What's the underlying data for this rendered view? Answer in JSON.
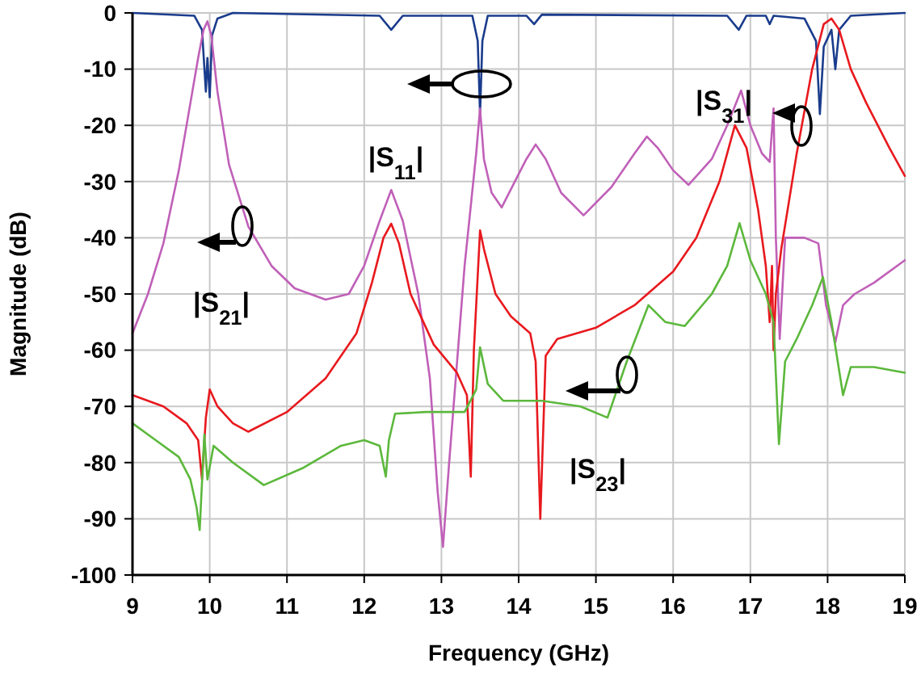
{
  "chart_data": {
    "type": "line",
    "xlabel": "Frequency (GHz)",
    "ylabel": "Magnitude (dB)",
    "xlim": [
      9,
      19
    ],
    "xticks": [
      9,
      10,
      11,
      12,
      13,
      14,
      15,
      16,
      17,
      18,
      19
    ],
    "ylim": [
      -100,
      0
    ],
    "yticks": [
      -100,
      -90,
      -80,
      -70,
      -60,
      -50,
      -40,
      -30,
      -20,
      -10,
      0
    ],
    "grid": true,
    "marker": "none",
    "line_style": "solid",
    "series": [
      {
        "color": "#1a3c8c",
        "x": [
          9,
          9.8,
          9.9,
          9.95,
          9.97,
          10.0,
          10.03,
          10.1,
          10.3,
          12.2,
          12.35,
          12.5,
          13.4,
          13.47,
          13.5,
          13.53,
          13.6,
          14.1,
          14.2,
          14.3,
          16.7,
          16.85,
          16.95,
          17.2,
          17.25,
          17.3,
          17.7,
          17.85,
          17.9,
          17.95,
          18.05,
          18.1,
          18.15,
          18.3,
          19
        ],
        "values": [
          0,
          -0.5,
          -3,
          -14,
          -8,
          -15,
          -4,
          -1,
          0,
          -0.5,
          -3,
          -0.5,
          -0.5,
          -5,
          -18,
          -5,
          -0.5,
          -0.5,
          -2,
          -0.3,
          -0.5,
          -3,
          -0.5,
          -0.5,
          -2,
          -0.5,
          -1,
          -5,
          -18,
          -6,
          -3,
          -10,
          -3,
          -0.5,
          0
        ]
      },
      {
        "color": "#c060b8",
        "x": [
          9,
          9.2,
          9.4,
          9.6,
          9.75,
          9.85,
          9.92,
          9.97,
          10.02,
          10.1,
          10.25,
          10.5,
          10.8,
          11.1,
          11.5,
          11.8,
          12.0,
          12.2,
          12.35,
          12.5,
          12.7,
          12.85,
          12.95,
          13.02,
          13.1,
          13.3,
          13.45,
          13.5,
          13.55,
          13.65,
          13.78,
          13.95,
          14.1,
          14.22,
          14.35,
          14.55,
          14.84,
          15.2,
          15.5,
          15.66,
          15.8,
          16.0,
          16.2,
          16.5,
          16.7,
          16.88,
          17.0,
          17.15,
          17.25,
          17.3,
          17.33,
          17.38,
          17.45,
          17.7,
          17.88,
          17.98,
          18.1,
          18.2,
          18.35,
          18.6,
          19
        ],
        "values": [
          -57,
          -50,
          -41,
          -28,
          -16,
          -8,
          -3,
          -1.5,
          -4,
          -14,
          -27,
          -38,
          -45,
          -49,
          -51,
          -50,
          -45,
          -37,
          -31.5,
          -37,
          -50,
          -65,
          -85,
          -95,
          -80,
          -45,
          -25,
          -17,
          -26,
          -32,
          -34.6,
          -30,
          -26,
          -23.4,
          -26,
          -32,
          -36,
          -31,
          -25,
          -22,
          -24,
          -28,
          -30.6,
          -26,
          -20,
          -13.8,
          -20,
          -25,
          -26.5,
          -17,
          -40,
          -58,
          -40,
          -40,
          -41,
          -52,
          -58.6,
          -52,
          -50,
          -48,
          -44
        ]
      },
      {
        "color": "#e8191e",
        "x": [
          9,
          9.4,
          9.7,
          9.85,
          9.9,
          9.95,
          10.0,
          10.1,
          10.3,
          10.5,
          11.0,
          11.5,
          11.9,
          12.1,
          12.25,
          12.35,
          12.45,
          12.6,
          12.9,
          13.2,
          13.33,
          13.38,
          13.42,
          13.5,
          13.55,
          13.7,
          13.9,
          14.15,
          14.22,
          14.28,
          14.35,
          14.5,
          15.0,
          15.5,
          16.0,
          16.3,
          16.6,
          16.8,
          16.95,
          17.1,
          17.2,
          17.25,
          17.28,
          17.3,
          17.33,
          17.4,
          17.6,
          17.8,
          17.95,
          18.05,
          18.15,
          18.3,
          18.5,
          18.8,
          19
        ],
        "values": [
          -68,
          -70,
          -73,
          -76,
          -83,
          -72,
          -67,
          -70,
          -73,
          -74.5,
          -71,
          -65,
          -57,
          -48,
          -40,
          -37.5,
          -41,
          -50,
          -59,
          -64,
          -68,
          -82.5,
          -60,
          -38.7,
          -42,
          -50,
          -54,
          -57,
          -62,
          -90,
          -61,
          -58,
          -56,
          -52,
          -46,
          -40,
          -30,
          -20,
          -24,
          -35,
          -45,
          -55,
          -45,
          -60,
          -50,
          -42,
          -25,
          -10,
          -2,
          -1,
          -3,
          -10,
          -16,
          -24,
          -29
        ]
      },
      {
        "color": "#5cb83c",
        "x": [
          9,
          9.3,
          9.6,
          9.75,
          9.83,
          9.87,
          9.93,
          9.97,
          10.05,
          10.3,
          10.7,
          11.2,
          11.7,
          12.0,
          12.2,
          12.28,
          12.32,
          12.4,
          12.8,
          13.3,
          13.45,
          13.5,
          13.6,
          13.8,
          14.3,
          14.8,
          15.15,
          15.4,
          15.68,
          15.9,
          16.15,
          16.5,
          16.7,
          16.86,
          17.0,
          17.2,
          17.3,
          17.37,
          17.45,
          17.6,
          17.8,
          17.94,
          18.05,
          18.2,
          18.3,
          18.6,
          19
        ],
        "values": [
          -73,
          -76,
          -79,
          -83,
          -88,
          -92,
          -75,
          -83,
          -77,
          -80,
          -84,
          -81,
          -77,
          -76,
          -77,
          -82.5,
          -76,
          -71.3,
          -71,
          -71,
          -67,
          -59.5,
          -66,
          -69,
          -69,
          -70,
          -72,
          -62,
          -52,
          -55,
          -55.7,
          -50,
          -45,
          -37.4,
          -44,
          -50,
          -55,
          -76.7,
          -62,
          -58,
          -52,
          -47,
          -55,
          -68,
          -63,
          -63,
          -64
        ]
      }
    ],
    "annotations": [
      "|S$_{11}$|",
      "|S$_{21}$|",
      "|S$_{23}$|",
      "|S$_{31}$|"
    ]
  }
}
